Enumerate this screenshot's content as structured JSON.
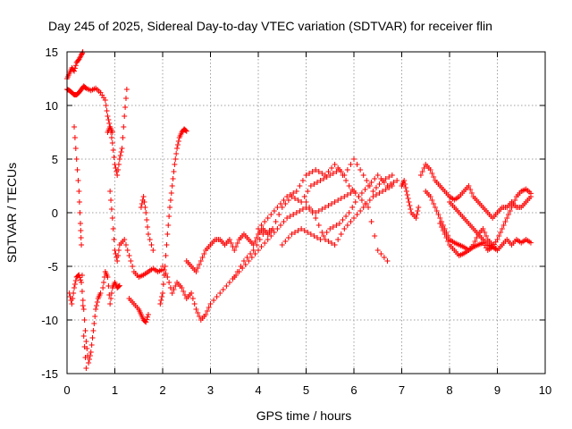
{
  "chart_data": {
    "type": "scatter",
    "title": "Day 245 of 2025, Sidereal Day-to-day VTEC variation (SDTVAR) for receiver flin",
    "xlabel": "GPS time / hours",
    "ylabel": "SDTVAR / TECUs",
    "xlim": [
      0,
      10
    ],
    "ylim": [
      -15,
      15
    ],
    "xticks": [
      "0",
      "1",
      "2",
      "3",
      "4",
      "5",
      "6",
      "7",
      "8",
      "9",
      "10"
    ],
    "yticks": [
      "-15",
      "-10",
      "-5",
      "0",
      "5",
      "10",
      "15"
    ],
    "grid": true,
    "legend": "none",
    "marker": "plus",
    "color": "#ff0000",
    "series": [
      {
        "x": [
          0.0,
          0.05,
          0.1,
          0.15,
          0.2,
          0.25,
          0.3,
          0.35,
          0.4,
          0.5,
          0.6,
          0.7,
          0.8,
          0.85,
          0.9,
          0.95
        ],
        "y": [
          11.5,
          11.4,
          11.2,
          11.0,
          11.0,
          11.2,
          11.5,
          11.8,
          11.6,
          11.4,
          11.6,
          11.2,
          10.5,
          9.0,
          8.0,
          7.5
        ]
      },
      {
        "x": [
          0.0,
          0.05,
          0.1,
          0.15,
          0.2,
          0.25,
          0.3,
          0.33
        ],
        "y": [
          12.5,
          13.0,
          13.5,
          13.2,
          14.0,
          14.3,
          14.7,
          15.0
        ]
      },
      {
        "x": [
          0.05,
          0.1,
          0.15,
          0.2,
          0.25,
          0.3,
          0.35,
          0.4,
          0.45,
          0.5,
          0.55,
          0.6,
          0.65,
          0.7
        ],
        "y": [
          -7.5,
          -8.5,
          -7.0,
          -6.0,
          -5.8,
          -6.5,
          -9.0,
          -12.0,
          -14.0,
          -13.0,
          -11.0,
          -9.0,
          -8.0,
          -7.5
        ]
      },
      {
        "x": [
          0.15,
          0.2,
          0.25,
          0.28,
          0.3,
          0.35,
          0.4
        ],
        "y": [
          8.0,
          5.0,
          2.0,
          -1.0,
          -3.0,
          -11.5,
          -14.5
        ]
      },
      {
        "x": [
          0.75,
          0.8,
          0.85,
          0.9,
          0.95,
          1.0,
          1.05,
          1.1
        ],
        "y": [
          -7.0,
          -5.5,
          -6.0,
          -8.5,
          -7.0,
          -6.5,
          -7.0,
          -6.8
        ]
      },
      {
        "x": [
          0.85,
          0.9,
          0.95,
          1.0,
          1.05,
          1.1,
          1.15,
          1.2,
          1.25
        ],
        "y": [
          7.5,
          8.0,
          6.5,
          4.5,
          3.5,
          5.0,
          6.0,
          9.0,
          11.5
        ]
      },
      {
        "x": [
          0.9,
          0.95,
          1.0,
          1.05,
          1.1,
          1.2,
          1.3,
          1.4,
          1.5,
          1.6,
          1.7,
          1.8,
          1.9,
          2.0
        ],
        "y": [
          2.0,
          -0.5,
          -3.5,
          -4.5,
          -3.0,
          -2.5,
          -4.0,
          -5.5,
          -6.0,
          -5.8,
          -5.5,
          -5.2,
          -5.5,
          -5.3
        ]
      },
      {
        "x": [
          1.3,
          1.4,
          1.5,
          1.55,
          1.6,
          1.65,
          1.7
        ],
        "y": [
          -8.0,
          -8.5,
          -9.0,
          -9.5,
          -10.0,
          -10.2,
          -9.5
        ]
      },
      {
        "x": [
          1.55,
          1.6,
          1.65,
          1.7,
          1.8
        ],
        "y": [
          0.5,
          1.5,
          0.0,
          -2.0,
          -3.5
        ]
      },
      {
        "x": [
          1.95,
          2.0,
          2.05,
          2.1,
          2.15,
          2.2,
          2.25,
          2.3,
          2.35,
          2.4,
          2.45,
          2.5
        ],
        "y": [
          -8.5,
          -7.5,
          -5.0,
          -2.0,
          0.5,
          2.5,
          4.5,
          6.0,
          7.0,
          7.5,
          7.8,
          7.6
        ]
      },
      {
        "x": [
          2.0,
          2.1,
          2.2,
          2.3,
          2.4,
          2.5,
          2.6,
          2.7,
          2.8,
          2.9,
          3.0
        ],
        "y": [
          -5.0,
          -6.0,
          -7.5,
          -6.5,
          -7.0,
          -8.0,
          -7.5,
          -9.0,
          -10.0,
          -9.5,
          -8.5
        ]
      },
      {
        "x": [
          2.5,
          2.6,
          2.7,
          2.8,
          2.9,
          3.0,
          3.1,
          3.2,
          3.3,
          3.4,
          3.5,
          3.6,
          3.7,
          3.8,
          3.9,
          4.0,
          4.1,
          4.2,
          4.3
        ],
        "y": [
          -4.5,
          -5.0,
          -5.5,
          -4.5,
          -3.5,
          -3.0,
          -2.5,
          -2.5,
          -3.0,
          -2.5,
          -3.5,
          -2.5,
          -2.0,
          -2.5,
          -3.0,
          -2.0,
          -1.5,
          -2.0,
          -1.5
        ]
      },
      {
        "x": [
          3.0,
          3.2,
          3.4,
          3.6,
          3.8,
          4.0,
          4.2,
          4.4,
          4.6,
          4.8,
          5.0,
          5.2,
          5.4,
          5.6,
          5.8,
          6.0
        ],
        "y": [
          -8.5,
          -7.5,
          -6.5,
          -5.5,
          -4.5,
          -3.5,
          -2.5,
          -1.5,
          -0.5,
          0.0,
          0.5,
          0.0,
          0.5,
          1.0,
          1.5,
          2.0
        ]
      },
      {
        "x": [
          3.5,
          3.7,
          3.9,
          4.1,
          4.3,
          4.5,
          4.7,
          4.9,
          5.1,
          5.3,
          5.5,
          5.7,
          5.9,
          6.1,
          6.3,
          6.5,
          6.7
        ],
        "y": [
          -6.0,
          -4.5,
          -3.5,
          -2.0,
          -1.5,
          0.5,
          1.5,
          1.0,
          2.5,
          3.0,
          3.5,
          4.0,
          2.5,
          1.5,
          0.5,
          -3.5,
          -4.5
        ]
      },
      {
        "x": [
          4.0,
          4.2,
          4.4,
          4.6,
          4.8,
          5.0,
          5.2,
          5.4,
          5.6,
          5.8,
          6.0,
          6.2,
          6.4,
          6.6,
          6.8
        ],
        "y": [
          -1.5,
          -0.5,
          0.5,
          1.5,
          2.0,
          3.5,
          4.0,
          3.5,
          4.5,
          3.5,
          5.0,
          3.5,
          2.0,
          3.0,
          3.5
        ]
      },
      {
        "x": [
          4.5,
          4.7,
          4.9,
          5.1,
          5.3,
          5.5,
          5.7,
          5.9,
          6.1,
          6.3,
          6.5,
          6.7,
          6.9
        ],
        "y": [
          -3.0,
          -2.0,
          -1.5,
          -2.0,
          -2.5,
          -1.5,
          -1.0,
          0.0,
          1.5,
          2.5,
          3.5,
          2.5,
          3.0
        ]
      },
      {
        "x": [
          5.0,
          5.2,
          5.4,
          5.6,
          5.8,
          6.0,
          6.2,
          6.4,
          6.6,
          6.8
        ],
        "y": [
          1.0,
          -0.5,
          -2.5,
          -3.0,
          -1.5,
          -0.5,
          0.5,
          1.5,
          2.0,
          2.5
        ]
      },
      {
        "x": [
          7.0,
          7.05,
          7.1,
          7.15,
          7.2,
          7.3,
          7.35
        ],
        "y": [
          2.5,
          3.0,
          2.0,
          1.0,
          0.0,
          -0.5,
          0.5
        ]
      },
      {
        "x": [
          7.4,
          7.5,
          7.6,
          7.7,
          7.8,
          7.9,
          8.0,
          8.1,
          8.2,
          8.3,
          8.4,
          8.5,
          8.6,
          8.7,
          8.8,
          8.9,
          9.0,
          9.1,
          9.2,
          9.3,
          9.4,
          9.5,
          9.6,
          9.7
        ],
        "y": [
          3.5,
          4.5,
          4.0,
          3.0,
          2.5,
          2.0,
          1.5,
          1.2,
          1.5,
          2.0,
          2.5,
          1.5,
          1.0,
          0.5,
          0.0,
          -0.5,
          0.0,
          0.5,
          0.5,
          1.0,
          0.5,
          0.5,
          1.0,
          1.5
        ]
      },
      {
        "x": [
          7.5,
          7.6,
          7.7,
          7.8,
          7.9,
          8.0,
          8.1,
          8.2,
          8.3,
          8.4,
          8.5,
          8.6,
          8.7,
          8.8,
          8.9,
          9.0,
          9.1,
          9.2,
          9.3,
          9.4,
          9.5,
          9.6,
          9.7
        ],
        "y": [
          2.0,
          1.5,
          0.5,
          -0.5,
          -1.5,
          -2.5,
          -2.8,
          -3.0,
          -3.2,
          -3.5,
          -3.0,
          -2.0,
          -1.5,
          -2.5,
          -3.0,
          -3.5,
          -3.0,
          -2.5,
          -3.0,
          -2.5,
          -2.8,
          -2.5,
          -2.8
        ]
      },
      {
        "x": [
          7.8,
          7.9,
          8.0,
          8.1,
          8.2,
          8.3,
          8.4,
          8.5,
          8.6,
          8.7,
          8.8,
          8.9,
          9.0,
          9.1,
          9.2,
          9.3,
          9.4,
          9.5,
          9.6,
          9.7
        ],
        "y": [
          -1.0,
          -2.0,
          -3.0,
          -3.5,
          -4.0,
          -3.8,
          -3.5,
          -3.2,
          -3.0,
          -2.8,
          -3.5,
          -3.2,
          -2.5,
          -1.5,
          -0.5,
          0.5,
          1.5,
          2.0,
          2.2,
          1.8
        ]
      },
      {
        "x": [
          8.0,
          8.1,
          8.2,
          8.3,
          8.4,
          8.5,
          8.6,
          8.7,
          8.8,
          8.9,
          9.0
        ],
        "y": [
          1.0,
          0.5,
          0.0,
          -0.5,
          -1.0,
          -1.5,
          -2.0,
          -2.5,
          -3.0,
          -3.2,
          -3.5
        ]
      }
    ]
  }
}
